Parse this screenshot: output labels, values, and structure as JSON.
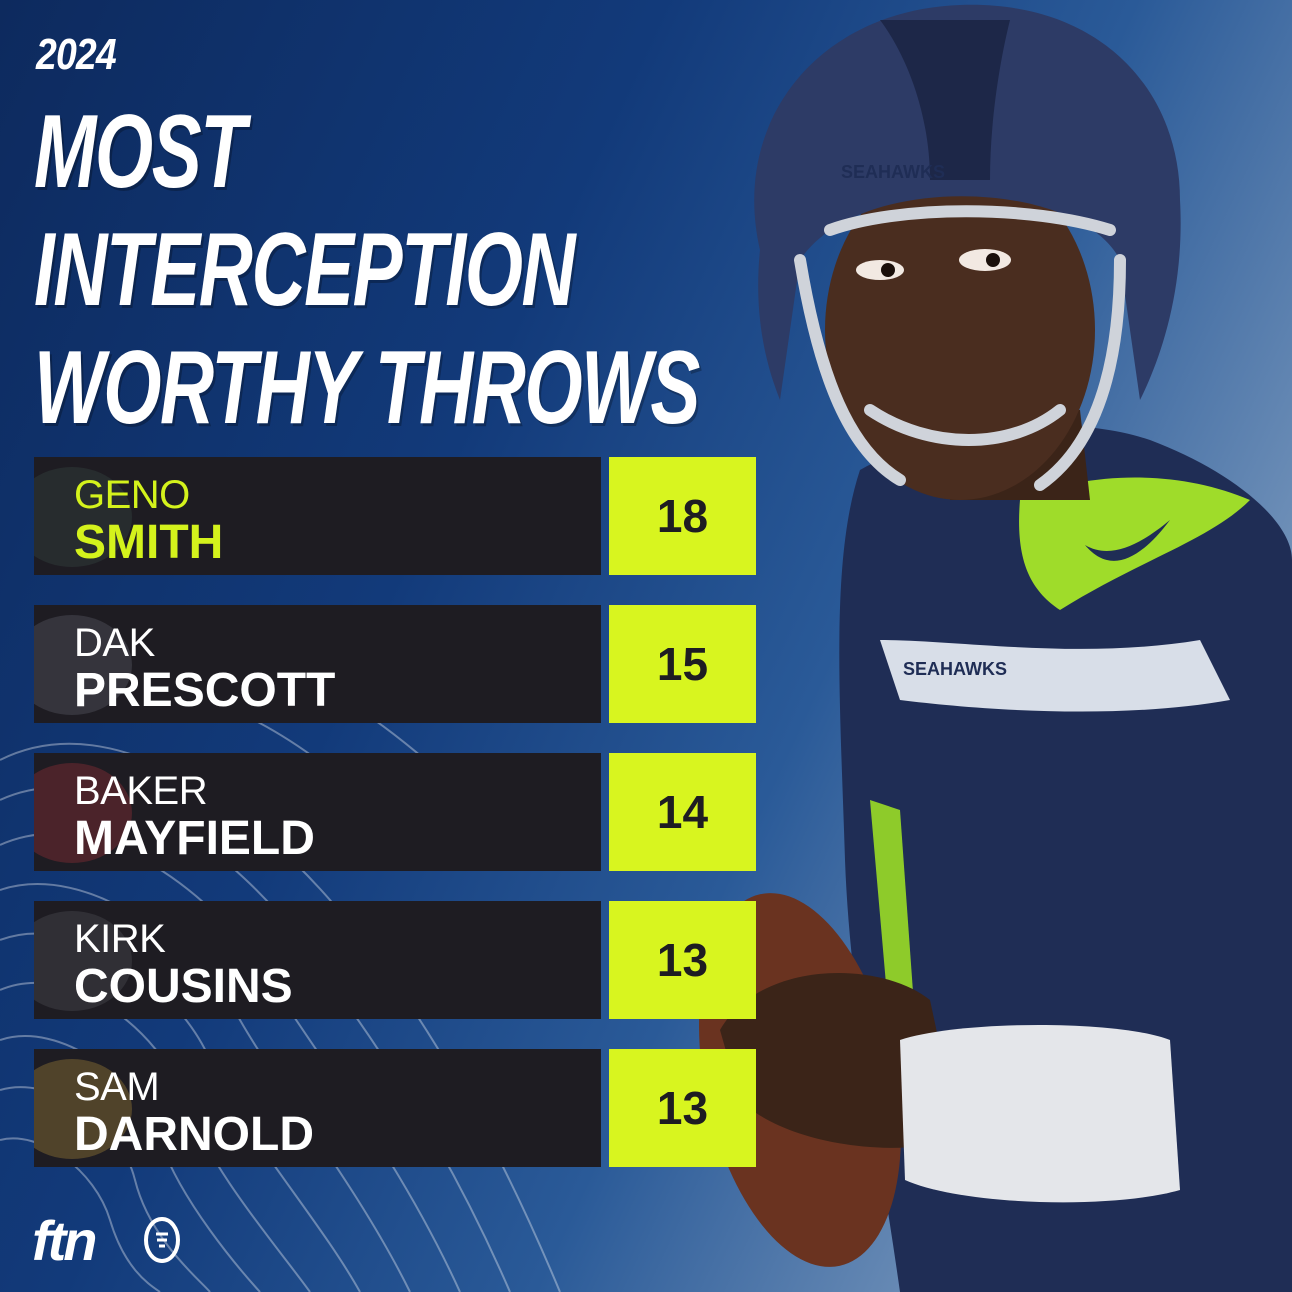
{
  "header": {
    "year": "2024",
    "title_lines": [
      "MOST",
      "INTERCEPTION",
      "WORTHY THROWS"
    ]
  },
  "rows": [
    {
      "first": "GENO",
      "last": "SMITH",
      "value": "18"
    },
    {
      "first": "DAK",
      "last": "PRESCOTT",
      "value": "15"
    },
    {
      "first": "BAKER",
      "last": "MAYFIELD",
      "value": "14"
    },
    {
      "first": "KIRK",
      "last": "COUSINS",
      "value": "13"
    },
    {
      "first": "SAM",
      "last": "DARNOLD",
      "value": "13"
    }
  ],
  "brand": {
    "logo_text": "ftn",
    "helmet_wordmark": "SEAHAWKS",
    "jersey_wordmark": "SEAHAWKS"
  },
  "colors": {
    "accent_lime": "#d8f51f",
    "bar_dark": "#1e1c22",
    "background_navy": "#0d2a5e",
    "jersey_navy": "#1f2d55"
  }
}
